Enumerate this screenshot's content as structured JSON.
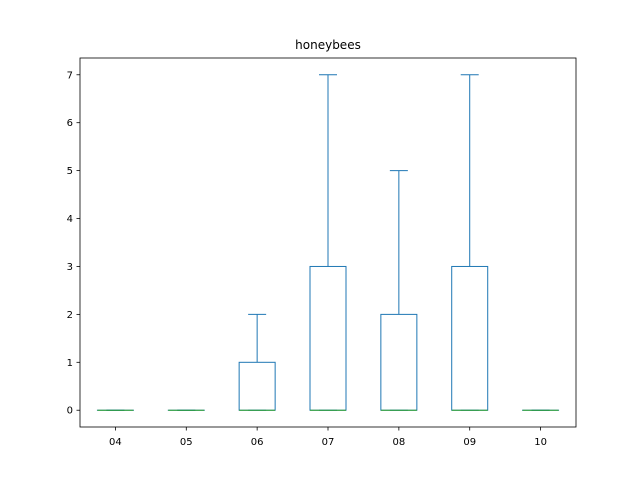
{
  "chart_data": {
    "type": "box",
    "title": "honeybees",
    "xlabel": "",
    "ylabel": "",
    "categories": [
      "04",
      "05",
      "06",
      "07",
      "08",
      "09",
      "10"
    ],
    "boxes": [
      {
        "category": "04",
        "whisker_low": 0,
        "q1": 0,
        "median": 0,
        "q3": 0,
        "whisker_high": 0
      },
      {
        "category": "05",
        "whisker_low": 0,
        "q1": 0,
        "median": 0,
        "q3": 0,
        "whisker_high": 0
      },
      {
        "category": "06",
        "whisker_low": 0,
        "q1": 0,
        "median": 0,
        "q3": 1,
        "whisker_high": 2
      },
      {
        "category": "07",
        "whisker_low": 0,
        "q1": 0,
        "median": 0,
        "q3": 3,
        "whisker_high": 7
      },
      {
        "category": "08",
        "whisker_low": 0,
        "q1": 0,
        "median": 0,
        "q3": 2,
        "whisker_high": 5
      },
      {
        "category": "09",
        "whisker_low": 0,
        "q1": 0,
        "median": 0,
        "q3": 3,
        "whisker_high": 7
      },
      {
        "category": "10",
        "whisker_low": 0,
        "q1": 0,
        "median": 0,
        "q3": 0,
        "whisker_high": 0
      }
    ],
    "yticks": [
      0,
      1,
      2,
      3,
      4,
      5,
      6,
      7
    ],
    "ylim": [
      -0.35,
      7.35
    ],
    "grid": false,
    "box_color": "#1f77b4",
    "median_color": "#2ca02c"
  }
}
